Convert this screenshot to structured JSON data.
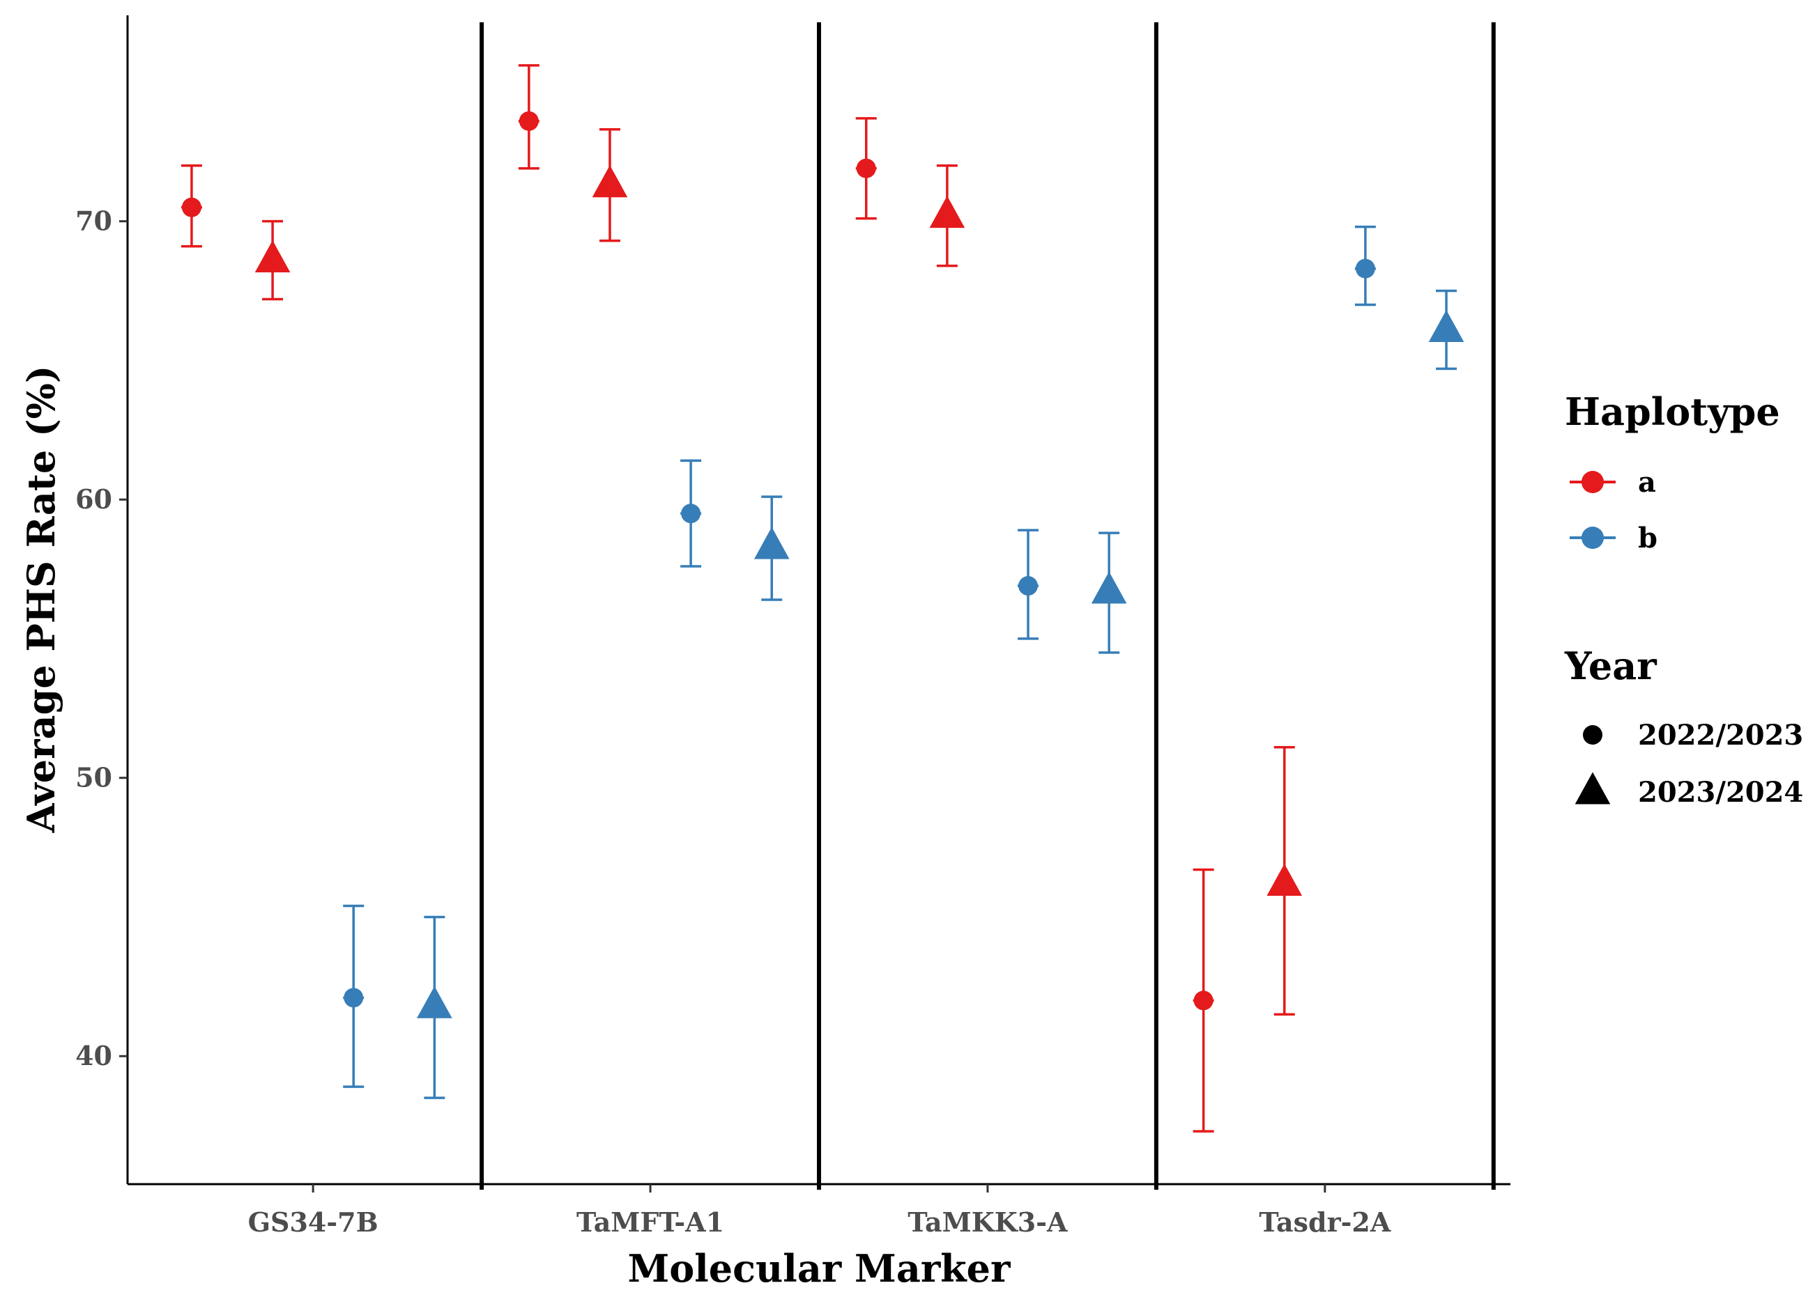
{
  "chart_data": {
    "type": "scatter",
    "subtype": "point-range with error bars",
    "xlabel": "Molecular Marker",
    "ylabel": "Average PHS Rate (%)",
    "ylim": [
      35.4,
      77.4
    ],
    "yticks": [
      40,
      50,
      60,
      70
    ],
    "categories": [
      "GS34-7B",
      "TaMFT-A1",
      "TaMKK3-A",
      "Tasdr-2A"
    ],
    "legend_position": "right",
    "legends": {
      "haplotype": {
        "title": "Haplotype",
        "items": [
          {
            "key": "a",
            "label": "a",
            "color": "#E41A1C"
          },
          {
            "key": "b",
            "label": "b",
            "color": "#377EB8"
          }
        ]
      },
      "year": {
        "title": "Year",
        "items": [
          {
            "key": "2022/2023",
            "label": "2022/2023",
            "shape": "circle"
          },
          {
            "key": "2023/2024",
            "label": "2023/2024",
            "shape": "triangle"
          }
        ]
      }
    },
    "points": [
      {
        "marker": "GS34-7B",
        "haplotype": "a",
        "year": "2022/2023",
        "mean": 70.5,
        "lower": 69.1,
        "upper": 72.0
      },
      {
        "marker": "GS34-7B",
        "haplotype": "a",
        "year": "2023/2024",
        "mean": 68.6,
        "lower": 67.2,
        "upper": 70.0
      },
      {
        "marker": "GS34-7B",
        "haplotype": "b",
        "year": "2022/2023",
        "mean": 42.1,
        "lower": 38.9,
        "upper": 45.4
      },
      {
        "marker": "GS34-7B",
        "haplotype": "b",
        "year": "2023/2024",
        "mean": 41.8,
        "lower": 38.5,
        "upper": 45.0
      },
      {
        "marker": "TaMFT-A1",
        "haplotype": "a",
        "year": "2022/2023",
        "mean": 73.6,
        "lower": 71.9,
        "upper": 75.6
      },
      {
        "marker": "TaMFT-A1",
        "haplotype": "a",
        "year": "2023/2024",
        "mean": 71.3,
        "lower": 69.3,
        "upper": 73.3
      },
      {
        "marker": "TaMFT-A1",
        "haplotype": "b",
        "year": "2022/2023",
        "mean": 59.5,
        "lower": 57.6,
        "upper": 61.4
      },
      {
        "marker": "TaMFT-A1",
        "haplotype": "b",
        "year": "2023/2024",
        "mean": 58.3,
        "lower": 56.4,
        "upper": 60.1
      },
      {
        "marker": "TaMKK3-A",
        "haplotype": "a",
        "year": "2022/2023",
        "mean": 71.9,
        "lower": 70.1,
        "upper": 73.7
      },
      {
        "marker": "TaMKK3-A",
        "haplotype": "a",
        "year": "2023/2024",
        "mean": 70.2,
        "lower": 68.4,
        "upper": 72.0
      },
      {
        "marker": "TaMKK3-A",
        "haplotype": "b",
        "year": "2022/2023",
        "mean": 56.9,
        "lower": 55.0,
        "upper": 58.9
      },
      {
        "marker": "TaMKK3-A",
        "haplotype": "b",
        "year": "2023/2024",
        "mean": 56.7,
        "lower": 54.5,
        "upper": 58.8
      },
      {
        "marker": "Tasdr-2A",
        "haplotype": "a",
        "year": "2022/2023",
        "mean": 42.0,
        "lower": 37.3,
        "upper": 46.7
      },
      {
        "marker": "Tasdr-2A",
        "haplotype": "a",
        "year": "2023/2024",
        "mean": 46.2,
        "lower": 41.5,
        "upper": 51.1
      },
      {
        "marker": "Tasdr-2A",
        "haplotype": "b",
        "year": "2022/2023",
        "mean": 68.3,
        "lower": 67.0,
        "upper": 69.8
      },
      {
        "marker": "Tasdr-2A",
        "haplotype": "b",
        "year": "2023/2024",
        "mean": 66.1,
        "lower": 64.7,
        "upper": 67.5
      }
    ]
  }
}
